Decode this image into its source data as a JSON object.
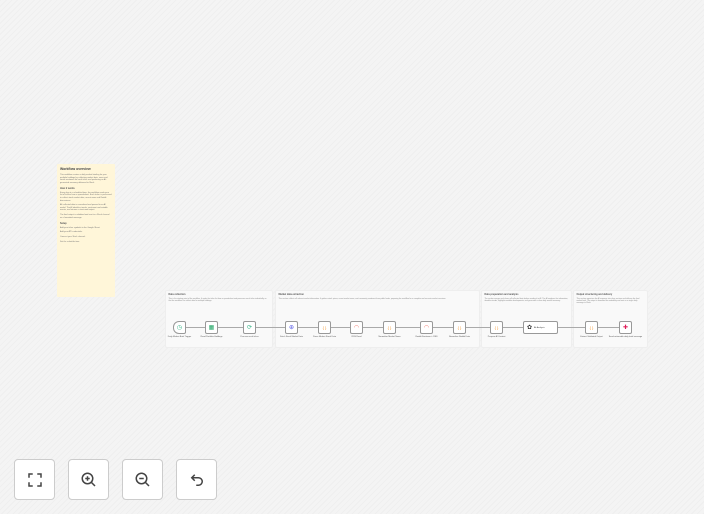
{
  "sticky": {
    "title": "Workflow overview",
    "intro": "This workflow creates a daily market briefing for your portfolio holdings by collecting market data, news and social sentiment for each ticker and producing an AI-generated summary delivered to Slack.",
    "how_title": "How it works",
    "how_1": "Every day at a scheduled time, the workflow reads your list of tickers from a spreadsheet. Each ticker is processed to collect stock market data, recent news and Reddit discussions.",
    "how_2": "All collected data is normalized and passed to an AI model. The AI identifies trends, sentiment and notable events, and returns a structured output.",
    "how_3": "The final output is validated and sent to a Slack channel as a formatted message.",
    "setup_title": "Setup",
    "setup_1": "Add your ticker symbols to the Google Sheet.",
    "setup_2": "Add your API credentials.",
    "setup_3": "Connect your Slack channel.",
    "setup_4": "Set the schedule time."
  },
  "groups": [
    {
      "title": "Data collection",
      "desc": "This is the starting point of the workflow. It reads the ticker list from a spreadsheet and processes each ticker individually so that the workflow can collect data for multiple holdings."
    },
    {
      "title": "Market data extraction",
      "desc": "This section collects all relevant market information. It gathers stock prices, recent market news, and community sentiment from public feeds, preparing the workflow for a complete and accurate market overview."
    },
    {
      "title": "Data preparation and analysis",
      "desc": "The section merges and cleans all collected data before sending it to AI. The AI analyzes the information, identifies trends, highlights notable developments, and generates a clear daily market summary."
    },
    {
      "title": "Output structuring and delivery",
      "desc": "This section organizes the AI response into clear sections and delivers the final market brief. The output is formatted for readability and sent as a single daily message to Slack."
    }
  ],
  "nodes": [
    {
      "label": "Daily Market Brief Trigger",
      "icon": "clock-icon",
      "color": "#3fb68b"
    },
    {
      "label": "Read Portfolio Holdings",
      "icon": "google-sheets-icon",
      "color": "#1fa463"
    },
    {
      "label": "Process each ticker",
      "icon": "loop-icon",
      "color": "#3fb68b"
    },
    {
      "label": "Fetch Stock Market Data",
      "icon": "globe-icon",
      "color": "#5a5ee6"
    },
    {
      "label": "Parse Market Stock Data",
      "icon": "code-icon",
      "color": "#f29a38"
    },
    {
      "label": "RSS Read",
      "icon": "rss-icon",
      "color": "#f06a5e"
    },
    {
      "label": "Normalize Market News",
      "icon": "code-icon",
      "color": "#f29a38"
    },
    {
      "label": "Reddit Sentiment - RSS",
      "icon": "rss-icon",
      "color": "#f06a5e"
    },
    {
      "label": "Normalize Reddit Data",
      "icon": "code-icon",
      "color": "#f29a38"
    },
    {
      "label": "Prepare AI Context",
      "icon": "code-icon",
      "color": "#f29a38"
    },
    {
      "label": "AI Analysis",
      "sublabel": "Chat Model",
      "icon": "openai-icon",
      "color": "#333333"
    },
    {
      "label": "Extract Validated Output",
      "icon": "code-icon",
      "color": "#f29a38"
    },
    {
      "label": "Send actionable daily brief message",
      "icon": "slack-icon",
      "color": "#e01e5a"
    }
  ],
  "controls": [
    {
      "name": "fit-view",
      "icon": "fullscreen-icon"
    },
    {
      "name": "zoom-in",
      "icon": "zoom-in-icon"
    },
    {
      "name": "zoom-out",
      "icon": "zoom-out-icon"
    },
    {
      "name": "undo",
      "icon": "undo-icon"
    }
  ]
}
